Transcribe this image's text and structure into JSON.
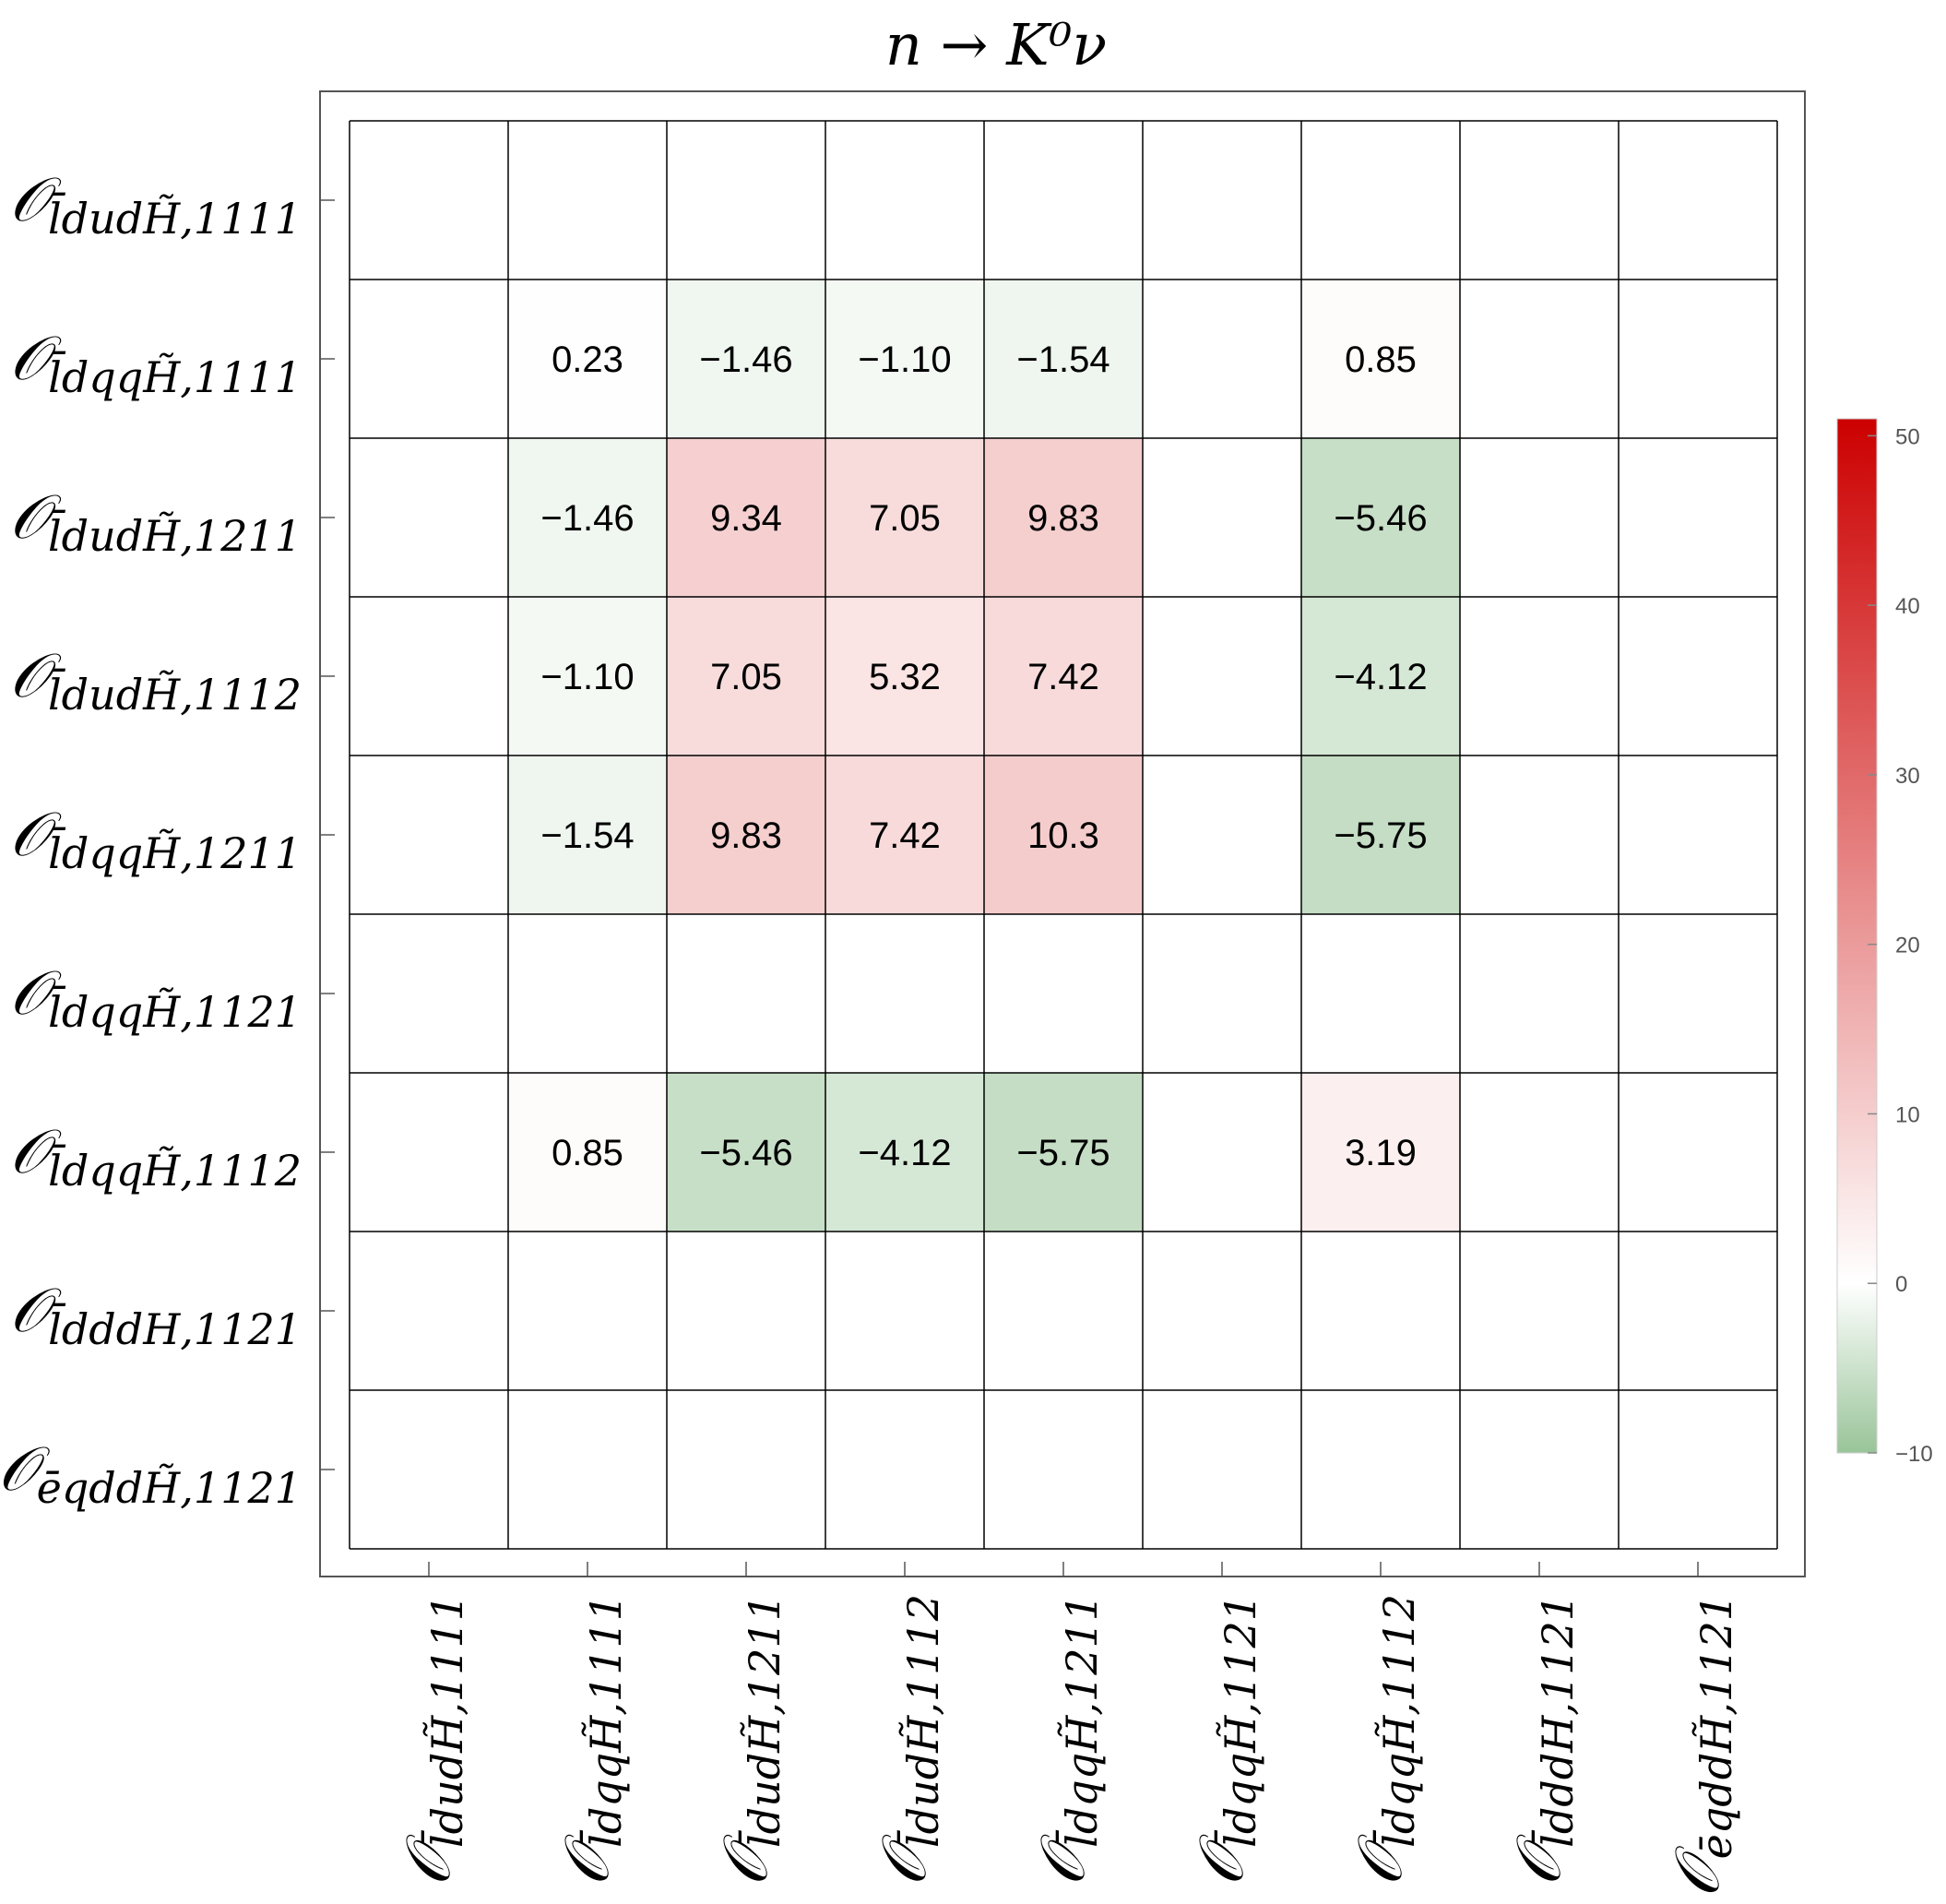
{
  "chart_data": {
    "type": "heatmap",
    "title": "n → K⁰ν",
    "row_labels": [
      {
        "symbol": "𝒪",
        "subscript": "l̄dudH̃,1111"
      },
      {
        "symbol": "𝒪",
        "subscript": "l̄dqqH̃,1111"
      },
      {
        "symbol": "𝒪",
        "subscript": "l̄dudH̃,1211"
      },
      {
        "symbol": "𝒪",
        "subscript": "l̄dudH̃,1112"
      },
      {
        "symbol": "𝒪",
        "subscript": "l̄dqqH̃,1211"
      },
      {
        "symbol": "𝒪",
        "subscript": "l̄dqqH̃,1121"
      },
      {
        "symbol": "𝒪",
        "subscript": "l̄dqqH̃,1112"
      },
      {
        "symbol": "𝒪",
        "subscript": "l̄dddH,1121"
      },
      {
        "symbol": "𝒪",
        "subscript": "ēqddH̃,1121"
      }
    ],
    "col_labels": [
      {
        "symbol": "𝒪",
        "subscript": "l̄dudH̃,1111"
      },
      {
        "symbol": "𝒪",
        "subscript": "l̄dqqH̃,1111"
      },
      {
        "symbol": "𝒪",
        "subscript": "l̄dudH̃,1211"
      },
      {
        "symbol": "𝒪",
        "subscript": "l̄dudH̃,1112"
      },
      {
        "symbol": "𝒪",
        "subscript": "l̄dqqH̃,1211"
      },
      {
        "symbol": "𝒪",
        "subscript": "l̄dqqH̃,1121"
      },
      {
        "symbol": "𝒪",
        "subscript": "l̄dqqH̃,1112"
      },
      {
        "symbol": "𝒪",
        "subscript": "l̄dddH,1121"
      },
      {
        "symbol": "𝒪",
        "subscript": "ēqddH̃,1121"
      }
    ],
    "values": [
      [
        null,
        null,
        null,
        null,
        null,
        null,
        null,
        null,
        null
      ],
      [
        null,
        0.23,
        -1.46,
        -1.1,
        -1.54,
        null,
        0.85,
        null,
        null
      ],
      [
        null,
        -1.46,
        9.34,
        7.05,
        9.83,
        null,
        -5.46,
        null,
        null
      ],
      [
        null,
        -1.1,
        7.05,
        5.32,
        7.42,
        null,
        -4.12,
        null,
        null
      ],
      [
        null,
        -1.54,
        9.83,
        7.42,
        10.3,
        null,
        -5.75,
        null,
        null
      ],
      [
        null,
        null,
        null,
        null,
        null,
        null,
        null,
        null,
        null
      ],
      [
        null,
        0.85,
        -5.46,
        -4.12,
        -5.75,
        null,
        3.19,
        null,
        null
      ],
      [
        null,
        null,
        null,
        null,
        null,
        null,
        null,
        null,
        null
      ],
      [
        null,
        null,
        null,
        null,
        null,
        null,
        null,
        null,
        null
      ]
    ],
    "value_labels": [
      [
        "",
        "",
        "",
        "",
        "",
        "",
        "",
        "",
        ""
      ],
      [
        "",
        "0.23",
        "−1.46",
        "−1.10",
        "−1.54",
        "",
        "0.85",
        "",
        ""
      ],
      [
        "",
        "−1.46",
        "9.34",
        "7.05",
        "9.83",
        "",
        "−5.46",
        "",
        ""
      ],
      [
        "",
        "−1.10",
        "7.05",
        "5.32",
        "7.42",
        "",
        "−4.12",
        "",
        ""
      ],
      [
        "",
        "−1.54",
        "9.83",
        "7.42",
        "10.3",
        "",
        "−5.75",
        "",
        ""
      ],
      [
        "",
        "",
        "",
        "",
        "",
        "",
        "",
        "",
        ""
      ],
      [
        "",
        "0.85",
        "−5.46",
        "−4.12",
        "−5.75",
        "",
        "3.19",
        "",
        ""
      ],
      [
        "",
        "",
        "",
        "",
        "",
        "",
        "",
        "",
        ""
      ],
      [
        "",
        "",
        "",
        "",
        "",
        "",
        "",
        "",
        ""
      ]
    ],
    "colorbar": {
      "range": [
        -10,
        51
      ],
      "ticks": [
        50,
        40,
        30,
        20,
        10,
        0,
        -10
      ],
      "tick_labels": [
        "50",
        "40",
        "30",
        "20",
        "10",
        "0",
        "−10"
      ],
      "color_max": "#cc0000",
      "color_zero": "#ffffff",
      "color_min": "#99c499"
    },
    "legend_position": "right"
  }
}
